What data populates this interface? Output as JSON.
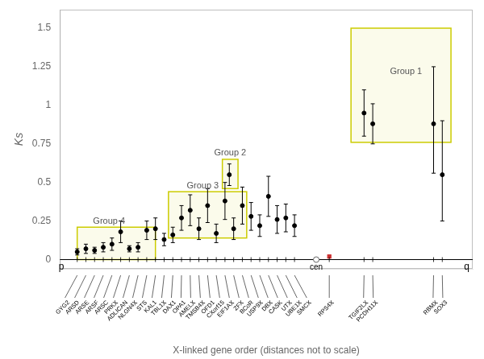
{
  "chart_data": {
    "type": "scatter",
    "xlabel": "X-linked gene order (distances not to scale)",
    "ylabel": "Ks",
    "xlim": [
      -1.0,
      46.5
    ],
    "ylim": [
      -0.06,
      1.62
    ],
    "yticks": [
      0.0,
      0.25,
      0.5,
      0.75,
      1.0,
      1.25,
      1.5
    ],
    "grid": false,
    "tick_labels": "y",
    "hlines": [
      0
    ],
    "series": [
      {
        "color": "#000000",
        "marker": "circle",
        "x": [
          1,
          2,
          3,
          4,
          5,
          6,
          7,
          8,
          9,
          10,
          11,
          12,
          13,
          14,
          15,
          16,
          17,
          18,
          19,
          20,
          21,
          22,
          23,
          24,
          25,
          26,
          18.5,
          34,
          35,
          42,
          43
        ],
        "values": [
          0.05,
          0.07,
          0.06,
          0.08,
          0.1,
          0.18,
          0.07,
          0.08,
          0.19,
          0.2,
          0.13,
          0.16,
          0.27,
          0.32,
          0.2,
          0.35,
          0.17,
          0.38,
          0.2,
          0.35,
          0.28,
          0.22,
          0.41,
          0.26,
          0.27,
          0.22,
          0.55,
          0.95,
          0.88,
          0.88,
          0.55
        ],
        "error_low": [
          0.02,
          0.03,
          0.02,
          0.03,
          0.04,
          0.07,
          0.02,
          0.03,
          0.06,
          0.07,
          0.04,
          0.05,
          0.08,
          0.1,
          0.07,
          0.11,
          0.06,
          0.12,
          0.07,
          0.12,
          0.09,
          0.07,
          0.13,
          0.09,
          0.09,
          0.07,
          0.07,
          0.15,
          0.13,
          0.32,
          0.3
        ],
        "error_high": [
          0.02,
          0.03,
          0.02,
          0.03,
          0.04,
          0.07,
          0.02,
          0.03,
          0.06,
          0.07,
          0.04,
          0.05,
          0.08,
          0.1,
          0.07,
          0.11,
          0.06,
          0.12,
          0.07,
          0.12,
          0.09,
          0.07,
          0.13,
          0.09,
          0.09,
          0.07,
          0.07,
          0.15,
          0.13,
          0.37,
          0.35
        ],
        "labels": [
          "GYG2",
          "ARSD",
          "ARSE",
          "ARSF",
          "ARSC",
          "PRKX",
          "ADLICAN",
          "NLGN4X",
          "STS",
          "KAL1",
          "TBL1X",
          "DAX1",
          "OPA1",
          "AMELX",
          "TMSB4X",
          "OFD1",
          "CXorf15",
          "EIF1AX",
          "ZFX",
          "BCoR",
          "USP9X",
          "DBX",
          "CASK",
          "UTX",
          "UBE1X",
          "SMCX",
          null,
          "TGIF2LX",
          "PCDH11X",
          "RBMX",
          "SOX3"
        ]
      },
      {
        "color": "#cc3333",
        "marker": "square",
        "x": [
          30
        ],
        "values": [
          0.02
        ],
        "error_low": [
          0.01
        ],
        "error_high": [
          0.01
        ],
        "labels": [
          "RPS4X"
        ]
      }
    ],
    "annotations": [
      {
        "type": "box",
        "text": "Group 1",
        "box": [
          32.5,
          0.76,
          11.5,
          0.74
        ],
        "color": "#cccc00"
      },
      {
        "type": "box",
        "text": "Group 2",
        "box": [
          17.7,
          0.46,
          1.8,
          0.19
        ],
        "color": "#cccc00"
      },
      {
        "type": "box",
        "text": "Group 3",
        "box": [
          11.5,
          0.14,
          9.0,
          0.3
        ],
        "color": "#cccc00"
      },
      {
        "type": "box",
        "text": "Group 4",
        "box": [
          1.0,
          0.0,
          9.0,
          0.21
        ],
        "color": "#cccc00"
      },
      {
        "type": "text",
        "text": "p",
        "x": -0.5,
        "y": 0
      },
      {
        "type": "centromere",
        "text": "cen",
        "x": 28.5,
        "y": 0
      },
      {
        "type": "text",
        "text": "q",
        "x": 45.5,
        "y": 0
      }
    ]
  }
}
